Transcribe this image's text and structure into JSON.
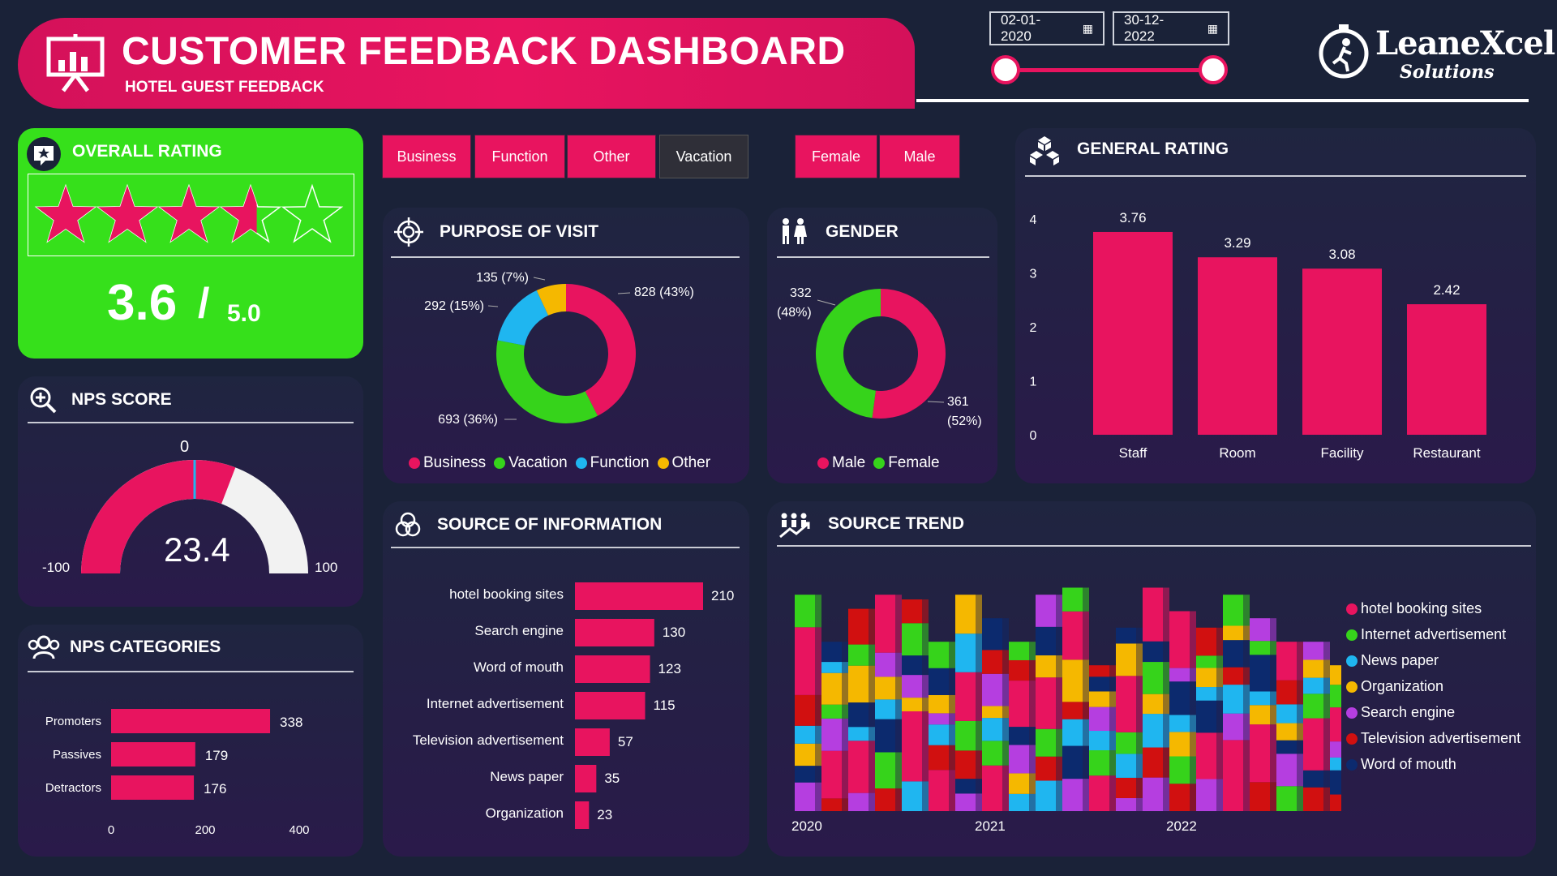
{
  "header": {
    "title": "CUSTOMER FEEDBACK DASHBOARD",
    "subtitle": "HOTEL GUEST FEEDBACK",
    "date_from": "02-01-2020",
    "date_to": "30-12-2022",
    "logo_name": "LeaneXcel",
    "logo_sub": "Solutions"
  },
  "filters": {
    "purpose": [
      "Business",
      "Function",
      "Other",
      "Vacation"
    ],
    "gender": [
      "Female",
      "Male"
    ]
  },
  "overall_rating": {
    "title": "OVERALL RATING",
    "value": "3.6",
    "slash": "/",
    "max": "5.0",
    "stars": 3.6
  },
  "nps_score": {
    "title": "NPS SCORE",
    "value": "23.4",
    "min": "-100",
    "max": "100",
    "target": "0"
  },
  "nps_categories": {
    "title": "NPS CATEGORIES",
    "chart_data": {
      "type": "bar",
      "orientation": "horizontal",
      "categories": [
        "Promoters",
        "Passives",
        "Detractors"
      ],
      "values": [
        338,
        179,
        176
      ],
      "xlim": [
        0,
        400
      ],
      "xticks": [
        "0",
        "200",
        "400"
      ]
    }
  },
  "purpose_of_visit": {
    "title": "PURPOSE OF VISIT",
    "chart_data": {
      "type": "pie",
      "donut": true,
      "categories": [
        "Business",
        "Vacation",
        "Function",
        "Other"
      ],
      "values": [
        828,
        693,
        292,
        135
      ],
      "labels": [
        "828 (43%)",
        "693 (36%)",
        "292 (15%)",
        "135 (7%)"
      ],
      "colors": [
        "#e8145f",
        "#36d31b",
        "#1fb6f0",
        "#f5b800"
      ],
      "legend": "bottom"
    }
  },
  "gender": {
    "title": "GENDER",
    "chart_data": {
      "type": "pie",
      "donut": true,
      "categories": [
        "Male",
        "Female"
      ],
      "values": [
        361,
        332
      ],
      "labels": [
        "361",
        "(52%)",
        "332",
        "(48%)"
      ],
      "colors": [
        "#e8145f",
        "#36d31b"
      ],
      "legend": "bottom"
    }
  },
  "general_rating": {
    "title": "GENERAL RATING",
    "chart_data": {
      "type": "bar",
      "categories": [
        "Staff",
        "Room",
        "Facility",
        "Restaurant"
      ],
      "values": [
        3.76,
        3.29,
        3.08,
        2.42
      ],
      "value_labels": [
        "3.76",
        "3.29",
        "3.08",
        "2.42"
      ],
      "ylim": [
        0,
        4
      ],
      "yticks": [
        "0",
        "1",
        "2",
        "3",
        "4"
      ]
    }
  },
  "source_of_information": {
    "title": "SOURCE OF INFORMATION",
    "chart_data": {
      "type": "bar",
      "orientation": "horizontal",
      "categories": [
        "hotel booking sites",
        "Search engine",
        "Word of mouth",
        "Internet advertisement",
        "Television advertisement",
        "News paper",
        "Organization"
      ],
      "values": [
        210,
        130,
        123,
        115,
        57,
        35,
        23
      ]
    }
  },
  "source_trend": {
    "title": "SOURCE TREND",
    "chart_data": {
      "type": "area",
      "x_ticks": [
        "2020",
        "2021",
        "2022"
      ],
      "series": [
        {
          "name": "hotel booking sites",
          "color": "#e8145f"
        },
        {
          "name": "Internet advertisement",
          "color": "#36d31b"
        },
        {
          "name": "News paper",
          "color": "#1fb6f0"
        },
        {
          "name": "Organization",
          "color": "#f5b800"
        },
        {
          "name": "Search engine",
          "color": "#b53ee0"
        },
        {
          "name": "Television advertisement",
          "color": "#d11010"
        },
        {
          "name": "Word of mouth",
          "color": "#0c2a6e"
        }
      ],
      "legend": "right"
    }
  }
}
